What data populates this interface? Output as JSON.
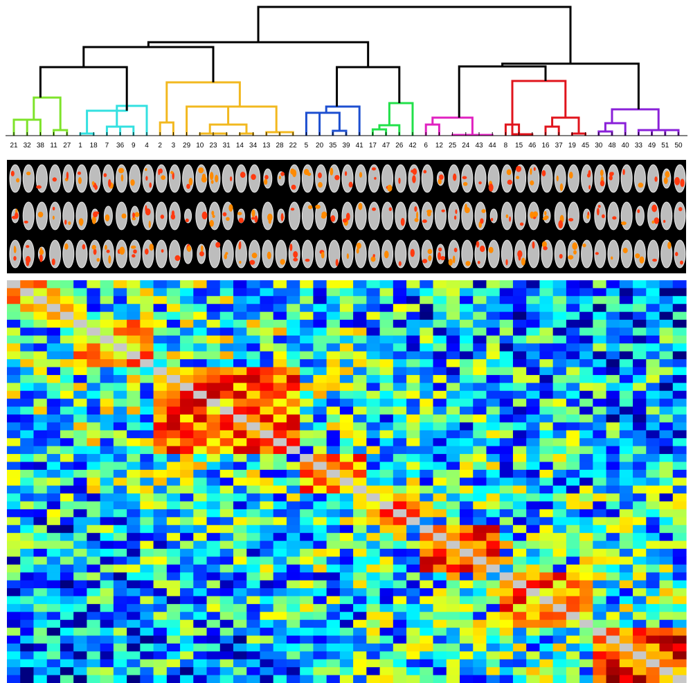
{
  "chart_data": [
    {
      "type": "dendrogram",
      "leaf_order": [
        "21",
        "32",
        "38",
        "11",
        "27",
        "1",
        "18",
        "7",
        "36",
        "9",
        "4",
        "2",
        "3",
        "29",
        "10",
        "23",
        "31",
        "14",
        "34",
        "13",
        "28",
        "22",
        "5",
        "20",
        "35",
        "39",
        "41",
        "17",
        "47",
        "26",
        "42",
        "6",
        "12",
        "25",
        "24",
        "43",
        "44",
        "8",
        "15",
        "46",
        "16",
        "37",
        "19",
        "45",
        "30",
        "48",
        "40",
        "33",
        "49",
        "51",
        "50"
      ],
      "cluster_colors": [
        "#7ee32a",
        "#33e0e0",
        "#f2b81f",
        "#1d4fd0",
        "#22e04a",
        "#e021c0",
        "#e0141c",
        "#8a20d8"
      ],
      "link_color": "#000000"
    },
    {
      "type": "image-strip",
      "rows": 3,
      "description_shown": "brain slice thumbnails per component"
    },
    {
      "type": "heatmap",
      "size": 51,
      "colormap": "jet",
      "diagonal_color": "#c8c8c8",
      "blocks": [
        {
          "start": 0,
          "end": 4,
          "value": 0.65
        },
        {
          "start": 5,
          "end": 10,
          "value": 0.7
        },
        {
          "start": 11,
          "end": 21,
          "value": 0.78
        },
        {
          "start": 22,
          "end": 26,
          "value": 0.72
        },
        {
          "start": 27,
          "end": 30,
          "value": 0.72
        },
        {
          "start": 31,
          "end": 36,
          "value": 0.8
        },
        {
          "start": 37,
          "end": 43,
          "value": 0.75
        },
        {
          "start": 44,
          "end": 50,
          "value": 0.82
        }
      ]
    }
  ]
}
